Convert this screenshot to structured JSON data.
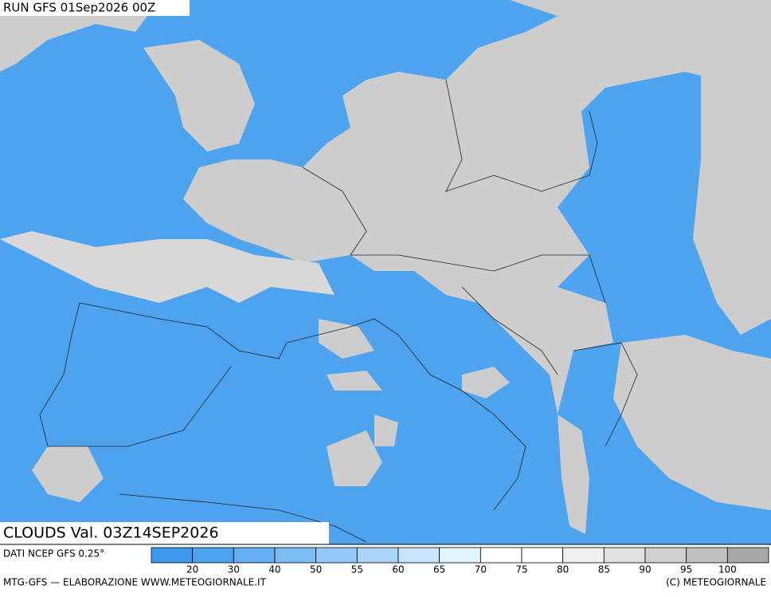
{
  "header": {
    "run": "RUN GFS 01Sep2026 00Z"
  },
  "map": {
    "label": "CLOUDS Val. 03Z14SEP2026"
  },
  "footer": {
    "source": "DATI NCEP GFS 0.25°",
    "credit": "MTG-GFS — ELABORAZIONE WWW.METEOGIORNALE.IT",
    "copyright": "(C) METEOGIORNALE"
  },
  "colorbar": {
    "ticks": [
      20,
      30,
      40,
      50,
      55,
      60,
      65,
      70,
      75,
      80,
      85,
      90,
      95,
      100
    ],
    "colors": [
      "#3b97ea",
      "#4da3ee",
      "#62aef0",
      "#7bbcf3",
      "#93c9f5",
      "#abd6f7",
      "#c6e5fa",
      "#e0f5fc",
      "#fcffff",
      "#ffffff",
      "#efefef",
      "#e0e0e0",
      "#d0d0d0",
      "#c0c0c0",
      "#a8a8a8"
    ]
  }
}
